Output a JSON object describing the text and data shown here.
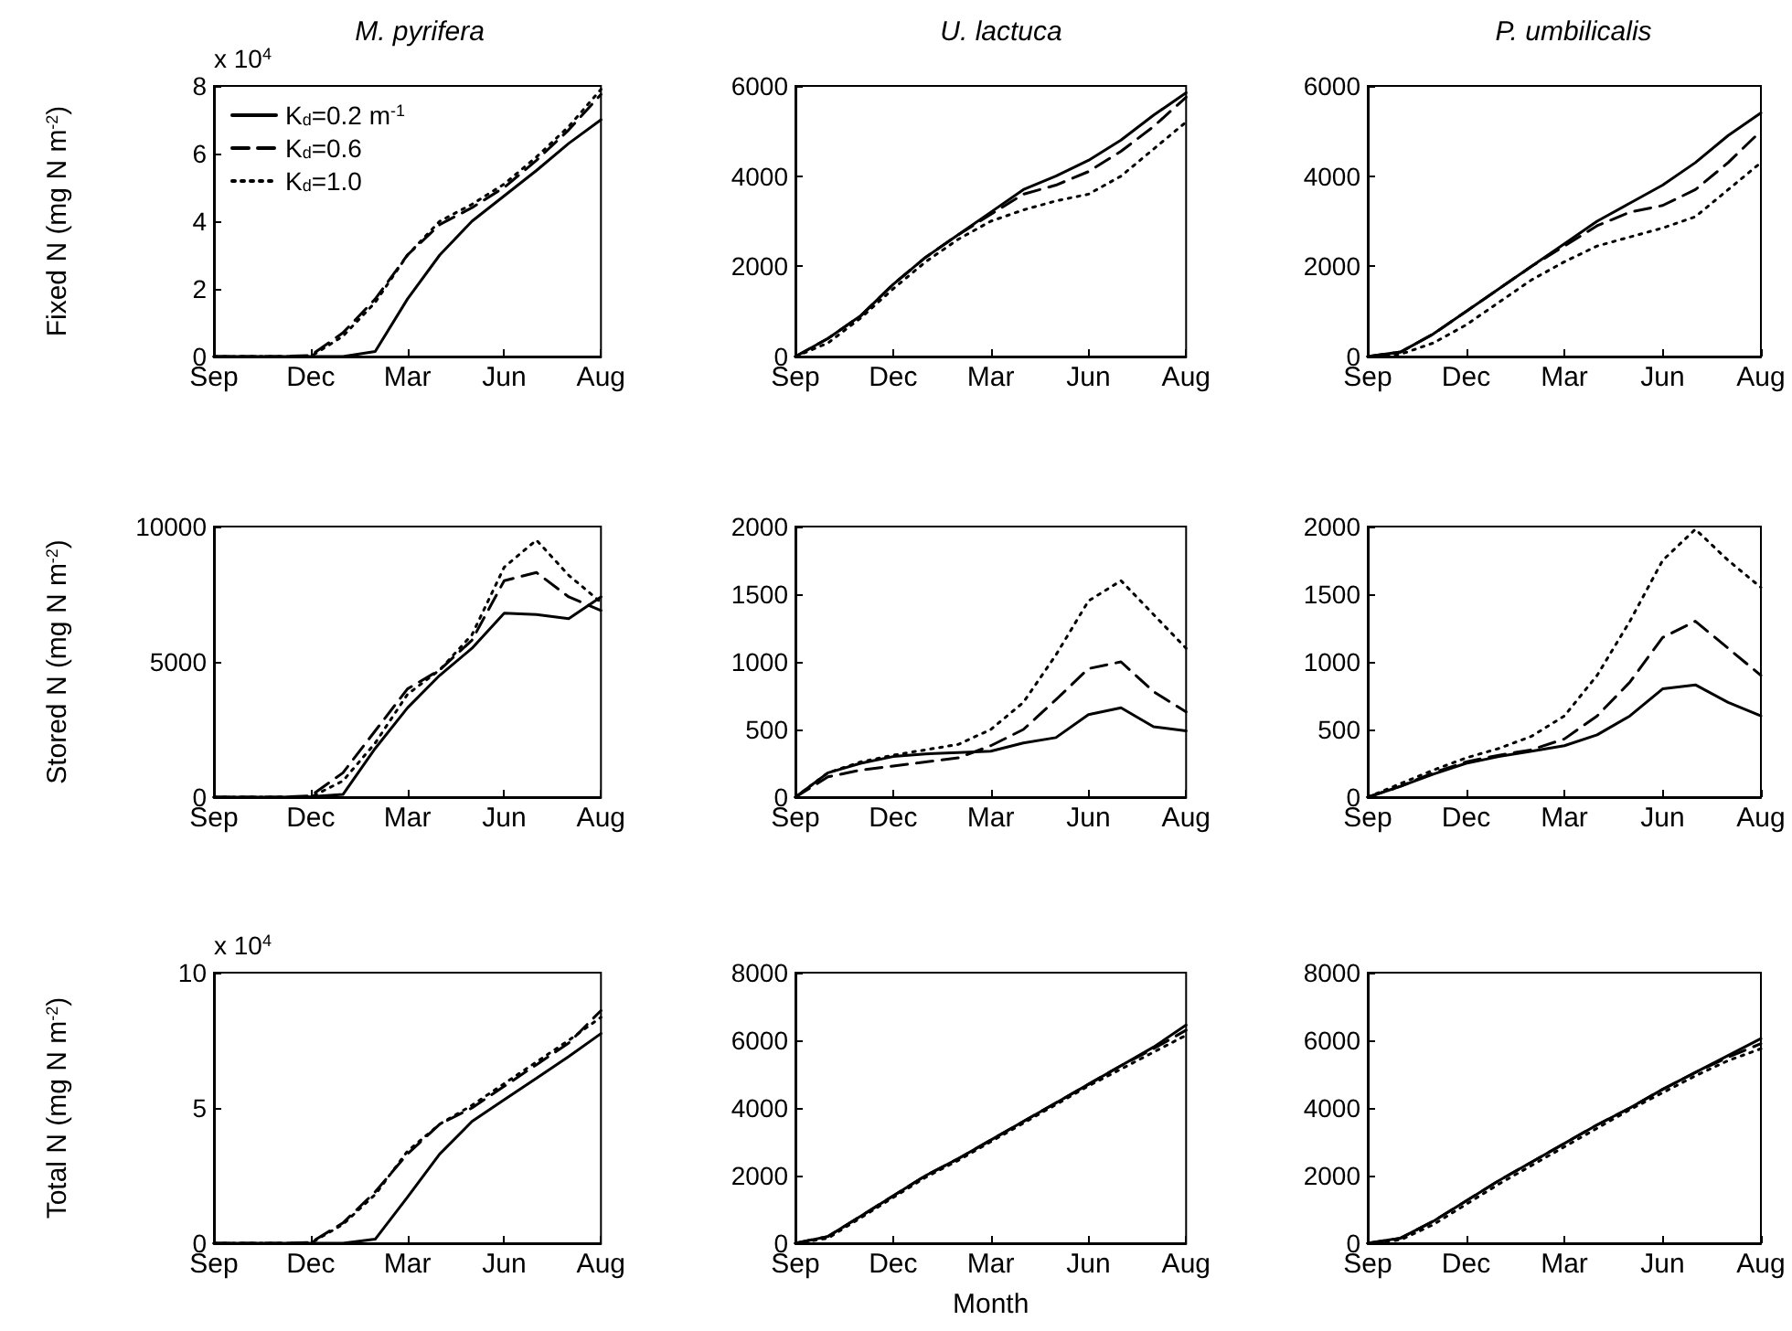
{
  "chart_data": [
    {
      "type": "line",
      "title": "M. pyrifera",
      "ylabel": "Fixed N (mg N m$^{-2}$)",
      "annotations": [
        "x 10$^{4}$"
      ],
      "categories": [
        "Sep",
        null,
        null,
        "Dec",
        null,
        null,
        "Mar",
        null,
        null,
        "Jun",
        null,
        null,
        "Aug"
      ],
      "ylim": [
        0,
        8
      ],
      "yticks": [
        0,
        2,
        4,
        6,
        8
      ],
      "legend": "top left",
      "marker": "none",
      "grid": false,
      "series": [
        {
          "name": "K$_{d}$=0.2 m$^{-1}$",
          "color": "#000000",
          "line_style": "solid",
          "values": [
            0,
            0,
            0,
            0,
            0,
            0.15,
            1.7,
            3.0,
            4.0,
            4.75,
            5.5,
            6.3,
            7.0
          ]
        },
        {
          "name": "K$_{d}$=0.6",
          "color": "#000000",
          "line_style": "dashed",
          "values": [
            0,
            0,
            0,
            0.03,
            0.7,
            1.7,
            3.0,
            3.9,
            4.4,
            5.0,
            5.8,
            6.7,
            7.75
          ]
        },
        {
          "name": "K$_{d}$=1.0",
          "color": "#000000",
          "line_style": "dotted",
          "values": [
            0,
            0,
            0,
            0,
            0.6,
            1.6,
            3.0,
            4.0,
            4.5,
            5.1,
            5.9,
            6.8,
            7.9
          ]
        }
      ]
    },
    {
      "type": "line",
      "title": "U. lactuca",
      "categories": [
        "Sep",
        null,
        null,
        "Dec",
        null,
        null,
        "Mar",
        null,
        null,
        "Jun",
        null,
        null,
        "Aug"
      ],
      "ylim": [
        0,
        6000
      ],
      "yticks": [
        0,
        2000,
        4000,
        6000
      ],
      "marker": "none",
      "grid": false,
      "series": [
        {
          "color": "#000000",
          "line_style": "solid",
          "values": [
            0,
            400,
            900,
            1600,
            2200,
            2700,
            3200,
            3700,
            4000,
            4350,
            4800,
            5350,
            5850
          ]
        },
        {
          "color": "#000000",
          "line_style": "dashed",
          "values": [
            0,
            400,
            900,
            1600,
            2200,
            2700,
            3150,
            3600,
            3800,
            4100,
            4550,
            5100,
            5750
          ]
        },
        {
          "color": "#000000",
          "line_style": "dotted",
          "values": [
            0,
            300,
            850,
            1500,
            2100,
            2600,
            3000,
            3250,
            3450,
            3600,
            4000,
            4600,
            5200
          ]
        }
      ]
    },
    {
      "type": "line",
      "title": "P. umbilicalis",
      "categories": [
        "Sep",
        null,
        null,
        "Dec",
        null,
        null,
        "Mar",
        null,
        null,
        "Jun",
        null,
        null,
        "Aug"
      ],
      "ylim": [
        0,
        6000
      ],
      "yticks": [
        0,
        2000,
        4000,
        6000
      ],
      "marker": "none",
      "grid": false,
      "series": [
        {
          "color": "#000000",
          "line_style": "solid",
          "values": [
            0,
            100,
            500,
            1000,
            1500,
            2000,
            2500,
            3000,
            3400,
            3800,
            4300,
            4900,
            5400
          ]
        },
        {
          "color": "#000000",
          "line_style": "dashed",
          "values": [
            0,
            100,
            500,
            1000,
            1500,
            2000,
            2450,
            2900,
            3200,
            3350,
            3700,
            4300,
            5000
          ]
        },
        {
          "color": "#000000",
          "line_style": "dotted",
          "values": [
            0,
            50,
            300,
            700,
            1200,
            1700,
            2100,
            2450,
            2650,
            2850,
            3100,
            3700,
            4300
          ]
        }
      ]
    },
    {
      "type": "line",
      "ylabel": "Stored N (mg N m$^{-2}$)",
      "categories": [
        "Sep",
        null,
        null,
        "Dec",
        null,
        null,
        "Mar",
        null,
        null,
        "Jun",
        null,
        null,
        "Aug"
      ],
      "ylim": [
        0,
        10000
      ],
      "yticks": [
        0,
        5000,
        10000
      ],
      "marker": "none",
      "grid": false,
      "series": [
        {
          "color": "#000000",
          "line_style": "solid",
          "values": [
            0,
            0,
            0,
            20,
            100,
            1800,
            3300,
            4500,
            5500,
            6800,
            6750,
            6600,
            7400
          ]
        },
        {
          "color": "#000000",
          "line_style": "dashed",
          "values": [
            0,
            0,
            0,
            50,
            900,
            2450,
            4000,
            4700,
            5800,
            8000,
            8300,
            7400,
            6900
          ]
        },
        {
          "color": "#000000",
          "line_style": "dotted",
          "values": [
            0,
            0,
            0,
            0,
            600,
            2000,
            3800,
            4700,
            6000,
            8500,
            9500,
            8200,
            7200
          ]
        }
      ]
    },
    {
      "type": "line",
      "categories": [
        "Sep",
        null,
        null,
        "Dec",
        null,
        null,
        "Mar",
        null,
        null,
        "Jun",
        null,
        null,
        "Aug"
      ],
      "ylim": [
        0,
        2000
      ],
      "yticks": [
        0,
        500,
        1000,
        1500,
        2000
      ],
      "marker": "none",
      "grid": false,
      "series": [
        {
          "color": "#000000",
          "line_style": "solid",
          "values": [
            0,
            180,
            250,
            300,
            320,
            330,
            340,
            400,
            440,
            610,
            660,
            520,
            490
          ]
        },
        {
          "color": "#000000",
          "line_style": "dashed",
          "values": [
            0,
            150,
            200,
            230,
            260,
            290,
            380,
            500,
            720,
            950,
            1000,
            780,
            630
          ]
        },
        {
          "color": "#000000",
          "line_style": "dotted",
          "values": [
            0,
            180,
            260,
            310,
            350,
            390,
            500,
            700,
            1050,
            1450,
            1600,
            1350,
            1100
          ]
        }
      ]
    },
    {
      "type": "line",
      "categories": [
        "Sep",
        null,
        null,
        "Dec",
        null,
        null,
        "Mar",
        null,
        null,
        "Jun",
        null,
        null,
        "Aug"
      ],
      "ylim": [
        0,
        2000
      ],
      "yticks": [
        0,
        500,
        1000,
        1500,
        2000
      ],
      "marker": "none",
      "grid": false,
      "series": [
        {
          "color": "#000000",
          "line_style": "solid",
          "values": [
            0,
            80,
            170,
            250,
            300,
            340,
            380,
            460,
            600,
            800,
            830,
            700,
            600
          ]
        },
        {
          "color": "#000000",
          "line_style": "dashed",
          "values": [
            0,
            80,
            180,
            260,
            310,
            350,
            430,
            600,
            850,
            1180,
            1300,
            1100,
            900
          ]
        },
        {
          "color": "#000000",
          "line_style": "dotted",
          "values": [
            0,
            100,
            200,
            290,
            360,
            450,
            600,
            900,
            1300,
            1750,
            1980,
            1750,
            1550
          ]
        }
      ]
    },
    {
      "type": "line",
      "ylabel": "Total N (mg N m$^{-2}$)",
      "annotations": [
        "x 10$^{4}$"
      ],
      "categories": [
        "Sep",
        null,
        null,
        "Dec",
        null,
        null,
        "Mar",
        null,
        null,
        "Jun",
        null,
        null,
        "Aug"
      ],
      "ylim": [
        0,
        10
      ],
      "yticks": [
        0,
        5,
        10
      ],
      "marker": "none",
      "grid": false,
      "series": [
        {
          "color": "#000000",
          "line_style": "solid",
          "values": [
            0,
            0,
            0,
            0,
            0,
            0.15,
            1.7,
            3.3,
            4.5,
            5.3,
            6.1,
            6.9,
            7.75
          ]
        },
        {
          "color": "#000000",
          "line_style": "dashed",
          "values": [
            0,
            0,
            0,
            0.03,
            0.75,
            1.9,
            3.3,
            4.4,
            5.0,
            5.8,
            6.6,
            7.4,
            8.6
          ]
        },
        {
          "color": "#000000",
          "line_style": "dotted",
          "values": [
            0,
            0,
            0,
            0,
            0.7,
            1.8,
            3.4,
            4.4,
            5.1,
            5.9,
            6.7,
            7.5,
            8.35
          ]
        }
      ]
    },
    {
      "type": "line",
      "xlabel": "Month",
      "categories": [
        "Sep",
        null,
        null,
        "Dec",
        null,
        null,
        "Mar",
        null,
        null,
        "Jun",
        null,
        null,
        "Aug"
      ],
      "ylim": [
        0,
        8000
      ],
      "yticks": [
        0,
        2000,
        4000,
        6000,
        8000
      ],
      "marker": "none",
      "grid": false,
      "series": [
        {
          "color": "#000000",
          "line_style": "solid",
          "values": [
            0,
            200,
            800,
            1400,
            2000,
            2500,
            3050,
            3600,
            4150,
            4700,
            5250,
            5800,
            6450
          ]
        },
        {
          "color": "#000000",
          "line_style": "dashed",
          "values": [
            0,
            200,
            800,
            1400,
            2000,
            2500,
            3050,
            3600,
            4150,
            4700,
            5250,
            5750,
            6300
          ]
        },
        {
          "color": "#000000",
          "line_style": "dotted",
          "values": [
            0,
            150,
            750,
            1350,
            1950,
            2450,
            3000,
            3550,
            4100,
            4650,
            5150,
            5650,
            6150
          ]
        }
      ]
    },
    {
      "type": "line",
      "categories": [
        "Sep",
        null,
        null,
        "Dec",
        null,
        null,
        "Mar",
        null,
        null,
        "Jun",
        null,
        null,
        "Aug"
      ],
      "ylim": [
        0,
        8000
      ],
      "yticks": [
        0,
        2000,
        4000,
        6000,
        8000
      ],
      "marker": "none",
      "grid": false,
      "series": [
        {
          "color": "#000000",
          "line_style": "solid",
          "values": [
            0,
            150,
            650,
            1250,
            1850,
            2400,
            2950,
            3500,
            4000,
            4550,
            5050,
            5550,
            6050
          ]
        },
        {
          "color": "#000000",
          "line_style": "dashed",
          "values": [
            0,
            150,
            650,
            1250,
            1850,
            2400,
            2950,
            3500,
            4000,
            4550,
            5050,
            5500,
            5900
          ]
        },
        {
          "color": "#000000",
          "line_style": "dotted",
          "values": [
            0,
            100,
            550,
            1150,
            1750,
            2300,
            2850,
            3400,
            3950,
            4450,
            4950,
            5400,
            5750
          ]
        }
      ]
    }
  ]
}
